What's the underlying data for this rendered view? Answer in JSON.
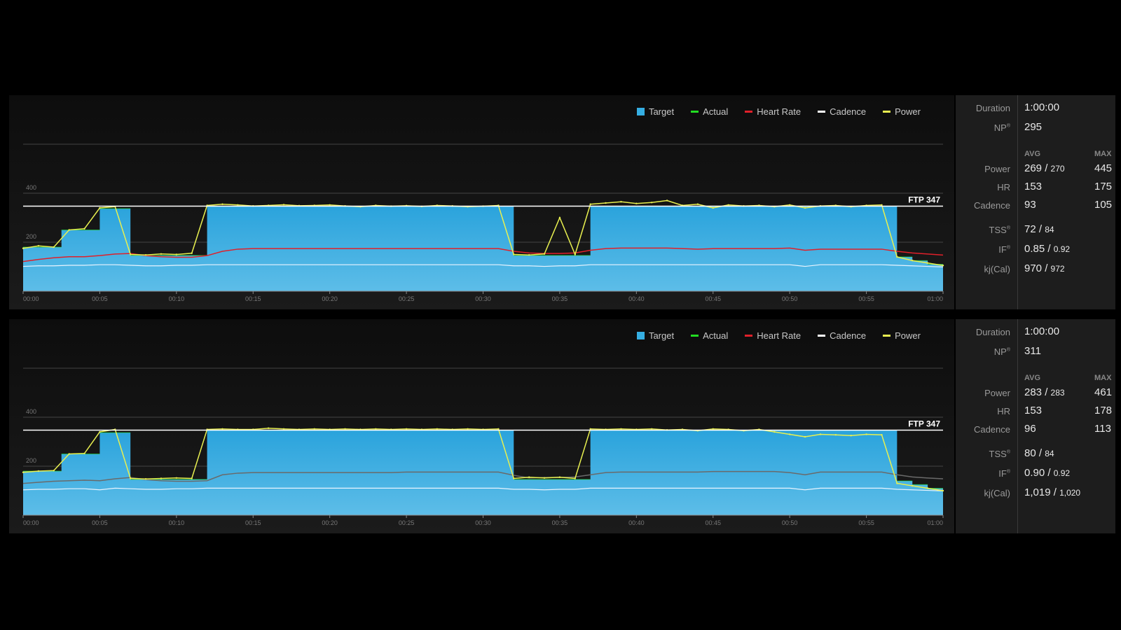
{
  "legend": [
    {
      "label": "Target",
      "color": "#35aee2",
      "shape": "box"
    },
    {
      "label": "Actual",
      "color": "#22dd22",
      "shape": "line"
    },
    {
      "label": "Heart Rate",
      "color": "#e0202a",
      "shape": "line"
    },
    {
      "label": "Cadence",
      "color": "#ffffff",
      "shape": "line"
    },
    {
      "label": "Power",
      "color": "#e8f050",
      "shape": "line"
    }
  ],
  "stats_labels": {
    "duration": "Duration",
    "np": "NP",
    "avg": "AVG",
    "max": "MAX",
    "power": "Power",
    "hr": "HR",
    "cadence": "Cadence",
    "tss": "TSS",
    "if": "IF",
    "kj": "kj(Cal)",
    "reg": "®"
  },
  "panels": [
    {
      "stats": {
        "duration": "1:00:00",
        "np": "295",
        "power_avg": "269",
        "power_target": "270",
        "power_max": "445",
        "hr_avg": "153",
        "hr_max": "175",
        "cadence_avg": "93",
        "cadence_max": "105",
        "tss": "72",
        "tss_target": "84",
        "if": "0.85",
        "if_target": "0.92",
        "kj": "970",
        "kj_target": "972"
      }
    },
    {
      "stats": {
        "duration": "1:00:00",
        "np": "311",
        "power_avg": "283",
        "power_target": "283",
        "power_max": "461",
        "hr_avg": "153",
        "hr_max": "178",
        "cadence_avg": "96",
        "cadence_max": "113",
        "tss": "80",
        "tss_target": "84",
        "if": "0.90",
        "if_target": "0.92",
        "kj": "1,019",
        "kj_target": "1,020"
      }
    }
  ],
  "chart_data": [
    {
      "type": "area",
      "ylim": [
        0,
        600
      ],
      "yticks": [
        200,
        400
      ],
      "xlim": [
        0,
        60
      ],
      "xticks": [
        "00:00",
        "00:05",
        "00:10",
        "00:15",
        "00:20",
        "00:25",
        "00:30",
        "00:35",
        "00:40",
        "00:45",
        "00:50",
        "00:55",
        "01:00"
      ],
      "ftp": {
        "label": "FTP 347",
        "value": 347
      },
      "hr_color": "#e0202a",
      "target_steps": [
        [
          0,
          2.5,
          180
        ],
        [
          2.5,
          5,
          250
        ],
        [
          5,
          7,
          337
        ],
        [
          7,
          12,
          146
        ],
        [
          12,
          32,
          347
        ],
        [
          32,
          37,
          146
        ],
        [
          37,
          57,
          347
        ],
        [
          57,
          58,
          140
        ],
        [
          58,
          59,
          125
        ],
        [
          59,
          60,
          110
        ]
      ],
      "power": [
        175,
        185,
        180,
        250,
        255,
        340,
        345,
        150,
        148,
        152,
        150,
        155,
        350,
        355,
        352,
        348,
        350,
        353,
        349,
        350,
        352,
        348,
        345,
        350,
        347,
        349,
        346,
        350,
        348,
        345,
        347,
        350,
        150,
        148,
        152,
        300,
        150,
        355,
        360,
        365,
        358,
        362,
        370,
        350,
        355,
        340,
        352,
        348,
        350,
        345,
        352,
        340,
        348,
        350,
        345,
        350,
        352,
        140,
        125,
        115,
        105
      ],
      "hr": [
        110,
        118,
        124,
        128,
        128,
        132,
        138,
        140,
        132,
        128,
        126,
        126,
        132,
        148,
        156,
        158,
        158,
        158,
        158,
        158,
        158,
        158,
        158,
        158,
        158,
        158,
        158,
        158,
        158,
        158,
        158,
        158,
        148,
        142,
        140,
        140,
        142,
        152,
        158,
        160,
        160,
        160,
        160,
        158,
        156,
        158,
        158,
        158,
        158,
        158,
        160,
        152,
        156,
        156,
        156,
        156,
        156,
        148,
        142,
        138,
        134
      ],
      "cadence": [
        88,
        90,
        90,
        92,
        92,
        94,
        94,
        92,
        90,
        90,
        92,
        92,
        94,
        94,
        94,
        94,
        94,
        94,
        94,
        94,
        94,
        94,
        94,
        94,
        94,
        94,
        94,
        94,
        94,
        94,
        94,
        94,
        90,
        90,
        88,
        90,
        90,
        94,
        94,
        94,
        94,
        94,
        94,
        94,
        94,
        94,
        94,
        94,
        94,
        94,
        94,
        88,
        94,
        94,
        94,
        94,
        94,
        92,
        90,
        88,
        86
      ]
    },
    {
      "type": "area",
      "ylim": [
        0,
        600
      ],
      "yticks": [
        200,
        400
      ],
      "xlim": [
        0,
        60
      ],
      "xticks": [
        "00:00",
        "00:05",
        "00:10",
        "00:15",
        "00:20",
        "00:25",
        "00:30",
        "00:35",
        "00:40",
        "00:45",
        "00:50",
        "00:55",
        "01:00"
      ],
      "ftp": {
        "label": "FTP 347",
        "value": 347
      },
      "hr_color": "#6a6a6a",
      "target_steps": [
        [
          0,
          2.5,
          180
        ],
        [
          2.5,
          5,
          250
        ],
        [
          5,
          7,
          337
        ],
        [
          7,
          12,
          146
        ],
        [
          12,
          32,
          347
        ],
        [
          32,
          37,
          146
        ],
        [
          37,
          57,
          347
        ],
        [
          57,
          58,
          140
        ],
        [
          58,
          59,
          125
        ],
        [
          59,
          60,
          110
        ]
      ],
      "power": [
        175,
        180,
        182,
        250,
        252,
        340,
        350,
        150,
        148,
        150,
        152,
        150,
        350,
        352,
        350,
        350,
        355,
        352,
        350,
        352,
        350,
        352,
        350,
        352,
        350,
        352,
        350,
        352,
        350,
        352,
        350,
        352,
        150,
        155,
        152,
        155,
        150,
        352,
        350,
        352,
        350,
        352,
        348,
        350,
        345,
        352,
        350,
        345,
        350,
        340,
        330,
        320,
        330,
        328,
        325,
        330,
        328,
        130,
        120,
        110,
        100
      ],
      "hr": [
        118,
        122,
        126,
        128,
        130,
        128,
        135,
        140,
        132,
        128,
        126,
        126,
        128,
        150,
        156,
        158,
        158,
        158,
        158,
        158,
        158,
        158,
        158,
        158,
        158,
        160,
        160,
        160,
        160,
        160,
        160,
        160,
        148,
        138,
        140,
        140,
        142,
        150,
        158,
        160,
        160,
        160,
        160,
        160,
        160,
        162,
        162,
        162,
        162,
        162,
        158,
        150,
        160,
        160,
        160,
        160,
        160,
        150,
        142,
        138,
        135
      ],
      "cadence": [
        90,
        92,
        92,
        94,
        94,
        90,
        96,
        94,
        92,
        92,
        94,
        94,
        96,
        96,
        96,
        96,
        96,
        96,
        96,
        96,
        96,
        96,
        96,
        96,
        96,
        96,
        96,
        96,
        96,
        96,
        96,
        96,
        92,
        92,
        90,
        92,
        92,
        96,
        96,
        96,
        96,
        96,
        96,
        96,
        96,
        96,
        96,
        96,
        96,
        96,
        96,
        90,
        96,
        96,
        96,
        96,
        96,
        92,
        90,
        88,
        86
      ]
    }
  ]
}
